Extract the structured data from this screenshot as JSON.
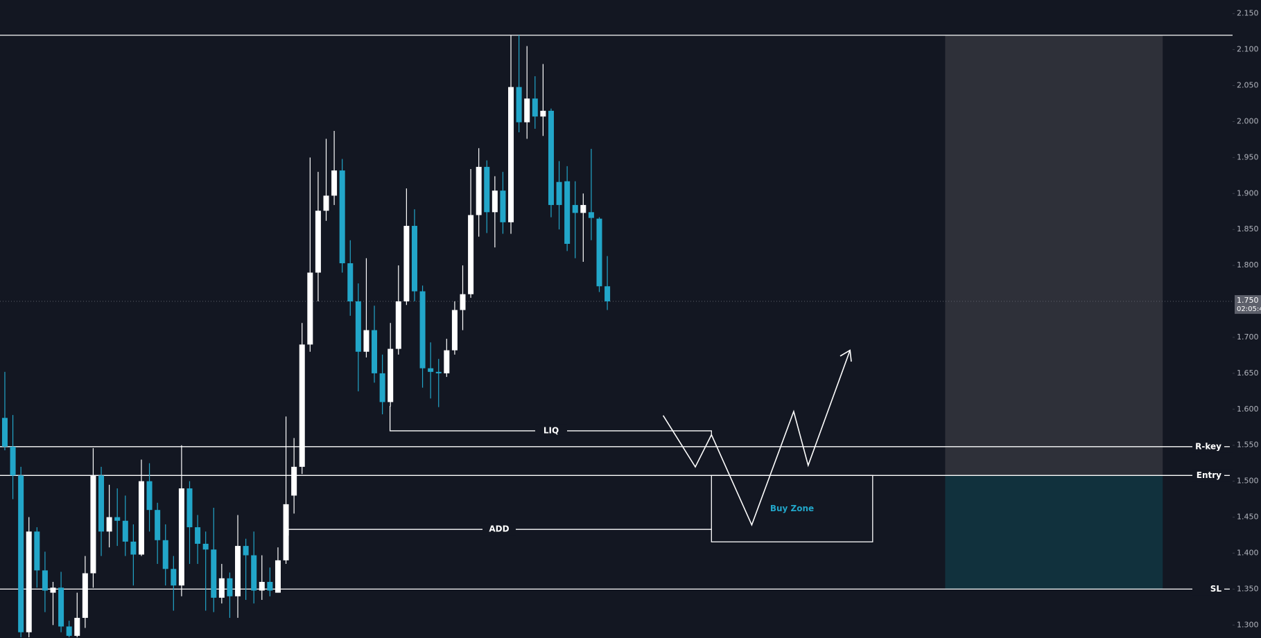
{
  "chart_data": {
    "type": "candlestick",
    "ylim": [
      1.282,
      2.169
    ],
    "yticks": [
      {
        "value": 1.3,
        "label": "1.300"
      },
      {
        "value": 1.35,
        "label": "1.350"
      },
      {
        "value": 1.4,
        "label": "1.400"
      },
      {
        "value": 1.45,
        "label": "1.450"
      },
      {
        "value": 1.5,
        "label": "1.500"
      },
      {
        "value": 1.55,
        "label": "1.550"
      },
      {
        "value": 1.6,
        "label": "1.600"
      },
      {
        "value": 1.65,
        "label": "1.650"
      },
      {
        "value": 1.7,
        "label": "1.700"
      },
      {
        "value": 1.8,
        "label": "1.800"
      },
      {
        "value": 1.85,
        "label": "1.850"
      },
      {
        "value": 1.9,
        "label": "1.900"
      },
      {
        "value": 1.95,
        "label": "1.950"
      },
      {
        "value": 2.0,
        "label": "2.000"
      },
      {
        "value": 2.05,
        "label": "2.050"
      },
      {
        "value": 2.1,
        "label": "2.100"
      },
      {
        "value": 2.15,
        "label": "2.150"
      }
    ],
    "up_color": "#ffffff",
    "down_color": "#22a6c9",
    "open": [
      1.588,
      1.548,
      1.508,
      1.29,
      1.43,
      1.376,
      1.345,
      1.352,
      1.298,
      1.285,
      1.31,
      1.372,
      1.508,
      1.43,
      1.45,
      1.445,
      1.416,
      1.398,
      1.5,
      1.46,
      1.418,
      1.378,
      1.355,
      1.49,
      1.436,
      1.413,
      1.405,
      1.338,
      1.365,
      1.34,
      1.41,
      1.397,
      1.348,
      1.36,
      1.345,
      1.39,
      1.48,
      1.52,
      1.69,
      1.79,
      1.876,
      1.897,
      1.932,
      1.803,
      1.75,
      1.68,
      1.71,
      1.65,
      1.61,
      1.684,
      1.75,
      1.855,
      1.764,
      1.657,
      1.652,
      1.65,
      1.682,
      1.738,
      1.76,
      1.87,
      1.937,
      1.874,
      1.904,
      1.86,
      2.048,
      1.999,
      2.032,
      2.007,
      2.015,
      1.916,
      1.917,
      1.884,
      1.873,
      1.874,
      1.865,
      1.771
    ],
    "high": [
      1.652,
      1.592,
      1.52,
      1.45,
      1.436,
      1.402,
      1.36,
      1.374,
      1.306,
      1.345,
      1.396,
      1.546,
      1.52,
      1.495,
      1.49,
      1.48,
      1.44,
      1.53,
      1.525,
      1.47,
      1.44,
      1.396,
      1.55,
      1.5,
      1.453,
      1.43,
      1.463,
      1.385,
      1.373,
      1.453,
      1.42,
      1.43,
      1.397,
      1.38,
      1.408,
      1.59,
      1.56,
      1.72,
      1.95,
      1.93,
      1.976,
      1.987,
      1.948,
      1.835,
      1.775,
      1.81,
      1.744,
      1.676,
      1.72,
      1.8,
      1.907,
      1.878,
      1.772,
      1.693,
      1.67,
      1.698,
      1.75,
      1.8,
      1.934,
      1.963,
      1.946,
      1.924,
      1.93,
      2.12,
      2.12,
      2.105,
      2.063,
      2.08,
      2.018,
      1.945,
      1.938,
      1.917,
      1.9,
      1.962,
      1.867,
      1.813
    ],
    "low": [
      1.543,
      1.475,
      1.283,
      1.283,
      1.352,
      1.318,
      1.3,
      1.29,
      1.283,
      1.283,
      1.296,
      1.352,
      1.396,
      1.408,
      1.41,
      1.396,
      1.355,
      1.396,
      1.43,
      1.385,
      1.355,
      1.32,
      1.34,
      1.385,
      1.385,
      1.32,
      1.318,
      1.33,
      1.31,
      1.31,
      1.335,
      1.33,
      1.335,
      1.34,
      1.345,
      1.385,
      1.455,
      1.51,
      1.68,
      1.75,
      1.862,
      1.884,
      1.79,
      1.73,
      1.625,
      1.672,
      1.637,
      1.593,
      1.604,
      1.676,
      1.745,
      1.75,
      1.63,
      1.615,
      1.603,
      1.645,
      1.676,
      1.71,
      1.755,
      1.84,
      1.845,
      1.825,
      1.844,
      1.844,
      1.985,
      1.976,
      1.99,
      1.98,
      1.867,
      1.85,
      1.82,
      1.81,
      1.805,
      1.835,
      1.763,
      1.738
    ],
    "close": [
      1.548,
      1.508,
      1.29,
      1.43,
      1.376,
      1.348,
      1.352,
      1.298,
      1.285,
      1.31,
      1.372,
      1.508,
      1.43,
      1.45,
      1.445,
      1.416,
      1.398,
      1.5,
      1.46,
      1.418,
      1.378,
      1.355,
      1.49,
      1.436,
      1.413,
      1.405,
      1.338,
      1.365,
      1.34,
      1.41,
      1.397,
      1.348,
      1.36,
      1.348,
      1.39,
      1.468,
      1.52,
      1.69,
      1.79,
      1.876,
      1.897,
      1.932,
      1.803,
      1.75,
      1.68,
      1.71,
      1.65,
      1.61,
      1.684,
      1.75,
      1.855,
      1.764,
      1.657,
      1.652,
      1.65,
      1.682,
      1.738,
      1.76,
      1.87,
      1.937,
      1.874,
      1.904,
      1.86,
      2.048,
      1.999,
      2.032,
      2.007,
      2.015,
      1.884,
      1.884,
      1.83,
      1.873,
      1.884,
      1.866,
      1.771,
      1.75
    ],
    "levels": [
      {
        "value": 2.12
      },
      {
        "name": "R-key",
        "value": 1.548
      },
      {
        "name": "Entry",
        "value": 1.508
      },
      {
        "name": "SL",
        "value": 1.35
      }
    ],
    "annotations": [
      {
        "text": "LIQ",
        "value": 1.57
      },
      {
        "text": "ADD",
        "value": 1.433
      },
      {
        "text": "Buy Zone"
      }
    ],
    "current_price": {
      "value": 1.75,
      "label": "1.750",
      "countdown": "02:05:4"
    }
  }
}
